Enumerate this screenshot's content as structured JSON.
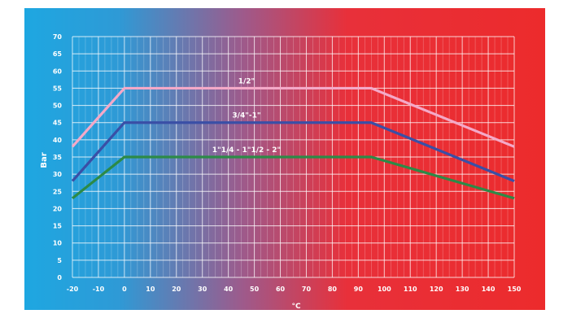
{
  "chart_data": {
    "type": "line",
    "title": "",
    "xlabel": "°C",
    "ylabel": "Bar",
    "xlim": [
      -20,
      150
    ],
    "ylim": [
      0,
      70
    ],
    "x_ticks": [
      -20,
      -10,
      0,
      10,
      20,
      30,
      40,
      50,
      60,
      70,
      80,
      90,
      100,
      110,
      120,
      130,
      140,
      150
    ],
    "y_ticks": [
      0,
      5,
      10,
      15,
      20,
      25,
      30,
      35,
      40,
      45,
      50,
      55,
      60,
      65,
      70
    ],
    "grid": true,
    "background_gradient": [
      "#1EA7E1",
      "#9E5A8B",
      "#E8303A",
      "#EC2B2C"
    ],
    "series": [
      {
        "name": "1/2\"",
        "color": "#F4A9C8",
        "x": [
          -20,
          0,
          95,
          150
        ],
        "y": [
          38,
          55,
          55,
          38
        ],
        "label_at": [
          47,
          55
        ]
      },
      {
        "name": "3/4\"-1\"",
        "color": "#3A4FA6",
        "x": [
          -20,
          0,
          95,
          150
        ],
        "y": [
          28,
          45,
          45,
          28
        ],
        "label_at": [
          47,
          45
        ]
      },
      {
        "name": "1\"1/4 - 1\"1/2 - 2\"",
        "color": "#2C8A47",
        "x": [
          -20,
          0,
          95,
          150
        ],
        "y": [
          23,
          35,
          35,
          23
        ],
        "label_at": [
          47,
          35
        ]
      }
    ]
  }
}
